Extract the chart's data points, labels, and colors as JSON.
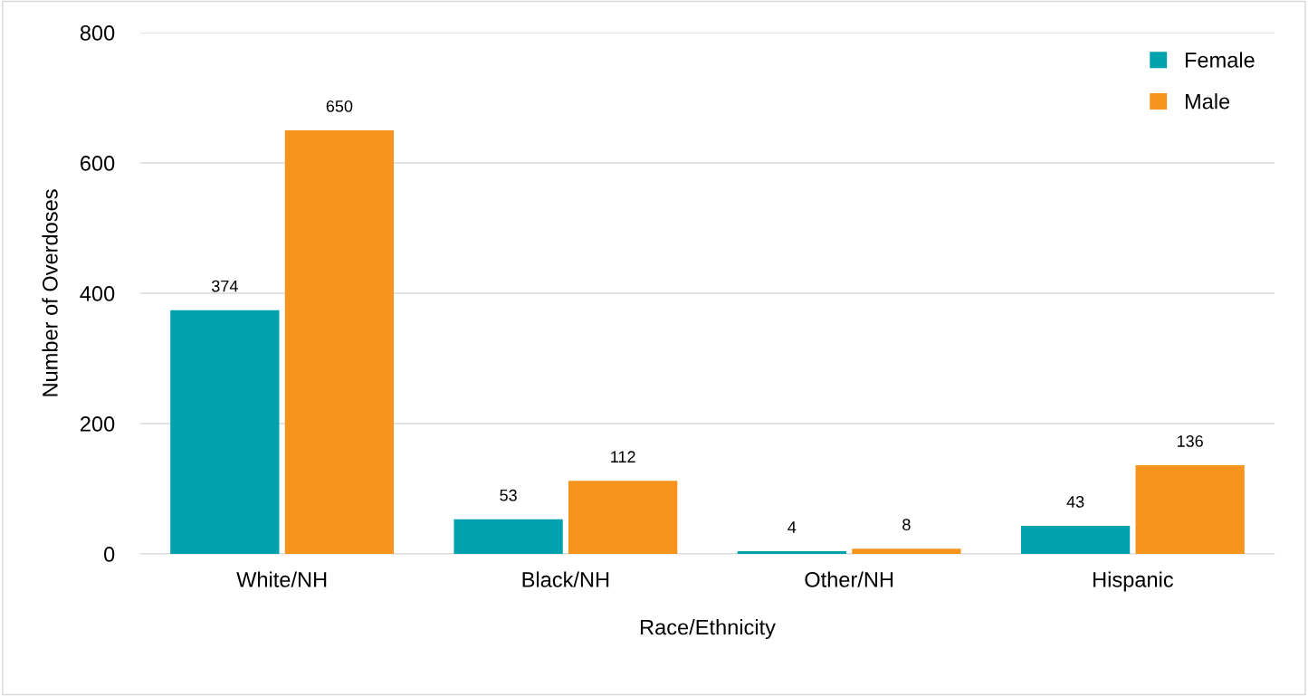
{
  "chart_data": {
    "type": "bar",
    "xlabel": "Race/Ethnicity",
    "ylabel": "Number of Overdoses",
    "categories": [
      "White/NH",
      "Black/NH",
      "Other/NH",
      "Hispanic"
    ],
    "series": [
      {
        "name": "Female",
        "color": "#00a3ad",
        "values": [
          374,
          53,
          4,
          43
        ]
      },
      {
        "name": "Male",
        "color": "#f7941d",
        "values": [
          650,
          112,
          8,
          136
        ]
      }
    ],
    "ylim": [
      0,
      800
    ],
    "yticks": [
      0,
      200,
      400,
      600,
      800
    ],
    "grid": "y",
    "legend": "top right",
    "data_labels": true
  }
}
